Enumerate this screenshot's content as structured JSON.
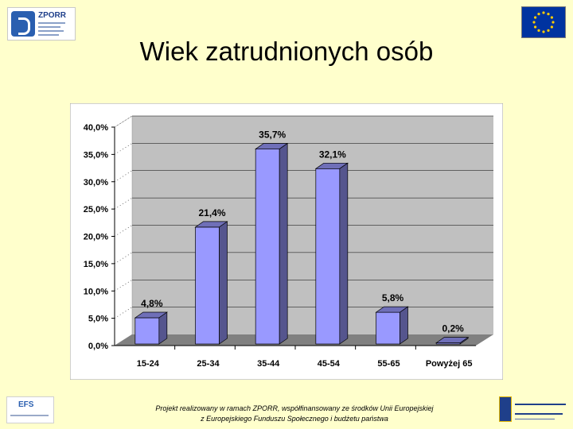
{
  "header": {
    "logo_text": "ZPORR",
    "title": "Wiek zatrudnionych osób"
  },
  "chart_data": {
    "type": "bar",
    "categories": [
      "15-24",
      "25-34",
      "35-44",
      "45-54",
      "55-65",
      "Powyżej 65"
    ],
    "values": [
      4.8,
      21.4,
      35.7,
      32.1,
      5.8,
      0.2
    ],
    "data_labels": [
      "4,8%",
      "21,4%",
      "35,7%",
      "32,1%",
      "5,8%",
      "0,2%"
    ],
    "y_ticks": [
      "0,0%",
      "5,0%",
      "10,0%",
      "15,0%",
      "20,0%",
      "25,0%",
      "30,0%",
      "35,0%",
      "40,0%"
    ],
    "ylim": [
      0,
      40
    ],
    "style": "3d",
    "grid": true,
    "colors": {
      "bar_front": "#9999ff",
      "bar_side": "#55558e",
      "bar_top": "#6f6fb8",
      "plot_back": "#c0c0c0",
      "plot_floor": "#808080",
      "chart_bg": "#ffffff"
    }
  },
  "footer": {
    "logo_text": "EFS",
    "line1": "Projekt realizowany w ramach ZPORR, współfinansowany ze środków Unii Europejskiej",
    "line2": "z Europejskiego Funduszu Społecznego i budżetu państwa"
  },
  "colors": {
    "slide_bg": "#ffffcc",
    "eu_blue": "#0033a0",
    "eu_star": "#ffcc00"
  },
  "icons": [
    "zporr-logo",
    "eu-flag-icon",
    "efs-logo",
    "european-social-fund-logo"
  ]
}
